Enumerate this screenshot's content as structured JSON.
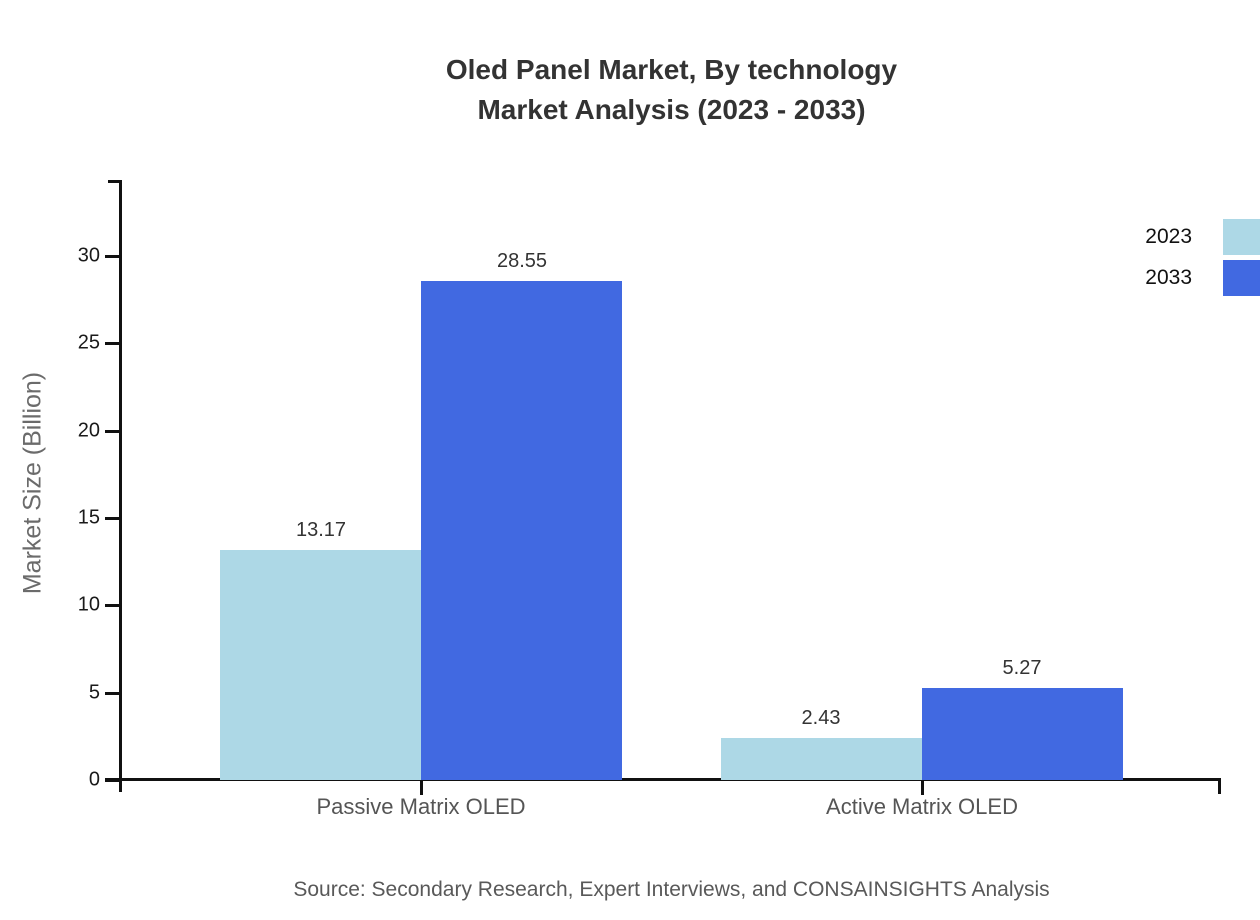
{
  "title": {
    "line1": "Oled Panel Market, By technology",
    "line2": "Market Analysis (2023 - 2033)"
  },
  "source": "Source: Secondary Research, Expert Interviews, and CONSAINSIGHTS Analysis",
  "chart_data": {
    "type": "bar",
    "categories": [
      "Passive Matrix OLED",
      "Active Matrix OLED"
    ],
    "series": [
      {
        "name": "2023",
        "color": "#ADD8E6",
        "values": [
          13.17,
          2.43
        ]
      },
      {
        "name": "2033",
        "color": "#4169E1",
        "values": [
          28.55,
          5.27
        ]
      }
    ],
    "title": "Oled Panel Market, By technology Market Analysis (2023 - 2033)",
    "xlabel": "",
    "ylabel": "Market Size (Billion)",
    "yticks": [
      0,
      5,
      10,
      15,
      20,
      25,
      30
    ],
    "ylim": [
      0,
      34.3
    ],
    "grid": false,
    "legend_position": "top-right",
    "value_labels": true,
    "value_label_format": "2-decimals"
  }
}
